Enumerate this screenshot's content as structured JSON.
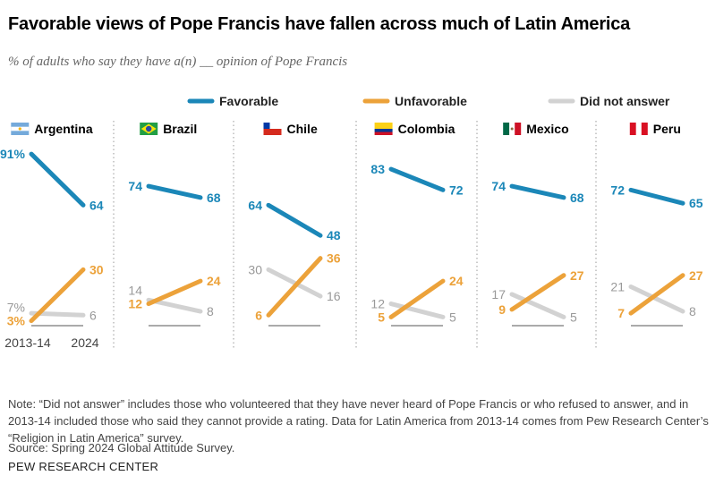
{
  "title": "Favorable views of Pope Francis have fallen across much of Latin America",
  "subtitle": "% of adults who say they have a(n) __ opinion of Pope Francis",
  "chart_data": {
    "type": "line",
    "x": [
      "2013-14",
      "2024"
    ],
    "legend": {
      "placement": "top",
      "entries": [
        "Favorable",
        "Unfavorable",
        "Did not answer"
      ]
    },
    "colors": {
      "Favorable": "#1b87b8",
      "Unfavorable": "#eca23a",
      "Did not answer": "#d2d2d2"
    },
    "ylim": [
      0,
      100
    ],
    "panels": [
      {
        "country": "Argentina",
        "flag": "argentina",
        "series": [
          {
            "name": "Favorable",
            "values": [
              91,
              64
            ]
          },
          {
            "name": "Unfavorable",
            "values": [
              3,
              30
            ]
          },
          {
            "name": "Did not answer",
            "values": [
              7,
              6
            ]
          }
        ]
      },
      {
        "country": "Brazil",
        "flag": "brazil",
        "series": [
          {
            "name": "Favorable",
            "values": [
              74,
              68
            ]
          },
          {
            "name": "Unfavorable",
            "values": [
              12,
              24
            ]
          },
          {
            "name": "Did not answer",
            "values": [
              14,
              8
            ]
          }
        ]
      },
      {
        "country": "Chile",
        "flag": "chile",
        "series": [
          {
            "name": "Favorable",
            "values": [
              64,
              48
            ]
          },
          {
            "name": "Unfavorable",
            "values": [
              6,
              36
            ]
          },
          {
            "name": "Did not answer",
            "values": [
              30,
              16
            ]
          }
        ]
      },
      {
        "country": "Colombia",
        "flag": "colombia",
        "series": [
          {
            "name": "Favorable",
            "values": [
              83,
              72
            ]
          },
          {
            "name": "Unfavorable",
            "values": [
              5,
              24
            ]
          },
          {
            "name": "Did not answer",
            "values": [
              12,
              5
            ]
          }
        ]
      },
      {
        "country": "Mexico",
        "flag": "mexico",
        "series": [
          {
            "name": "Favorable",
            "values": [
              74,
              68
            ]
          },
          {
            "name": "Unfavorable",
            "values": [
              9,
              27
            ]
          },
          {
            "name": "Did not answer",
            "values": [
              17,
              5
            ]
          }
        ]
      },
      {
        "country": "Peru",
        "flag": "peru",
        "series": [
          {
            "name": "Favorable",
            "values": [
              72,
              65
            ]
          },
          {
            "name": "Unfavorable",
            "values": [
              7,
              27
            ]
          },
          {
            "name": "Did not answer",
            "values": [
              21,
              8
            ]
          }
        ]
      }
    ]
  },
  "note": "Note: “Did not answer” includes those who volunteered that they have never heard of Pope Francis or who refused to answer, and in 2013-14 included those who said they cannot provide a rating. Data for Latin America from 2013-14 comes from Pew Research Center’s “Religion in Latin America” survey.",
  "source": "Source: Spring 2024 Global Attitude Survey.",
  "org": "PEW RESEARCH CENTER"
}
